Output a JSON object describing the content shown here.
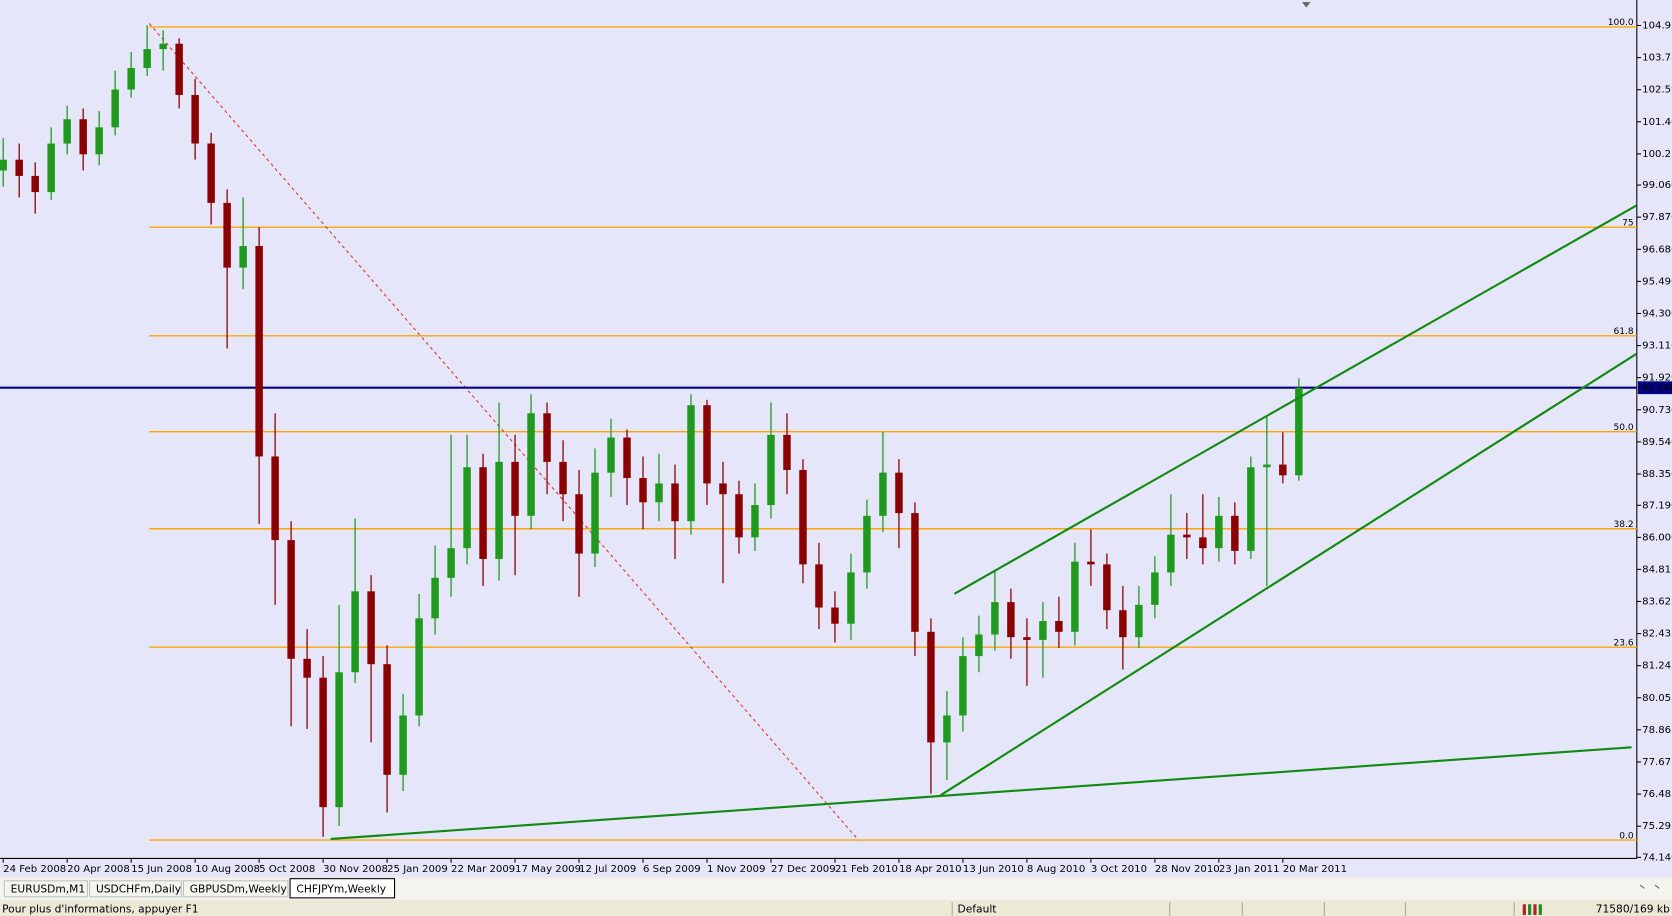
{
  "chart_data": {
    "type": "candlestick",
    "up_color": "#1f9a1f",
    "down_color": "#8b0000",
    "categories": [
      "24 Feb 2008",
      null,
      null,
      null,
      "20 Apr 2008",
      null,
      null,
      null,
      "15 Jun 2008",
      null,
      null,
      null,
      "10 Aug 2008",
      null,
      null,
      null,
      "5 Oct 2008",
      null,
      null,
      null,
      "30 Nov 2008",
      null,
      null,
      null,
      "25 Jan 2009",
      null,
      null,
      null,
      "22 Mar 2009",
      null,
      null,
      null,
      "17 May 2009",
      null,
      null,
      null,
      "12 Jul 2009",
      null,
      null,
      null,
      "6 Sep 2009",
      null,
      null,
      null,
      "1 Nov 2009",
      null,
      null,
      null,
      "27 Dec 2009",
      null,
      null,
      null,
      "21 Feb 2010",
      null,
      null,
      null,
      "18 Apr 2010",
      null,
      null,
      null,
      "13 Jun 2010",
      null,
      null,
      null,
      "8 Aug 2010",
      null,
      null,
      null,
      "3 Oct 2010",
      null,
      null,
      null,
      "28 Nov 2010",
      null,
      null,
      null,
      "23 Jan 2011",
      null,
      null,
      null,
      "20 Mar 2011",
      null
    ],
    "open": [
      99.6,
      100.0,
      99.4,
      98.8,
      100.6,
      101.5,
      100.2,
      101.2,
      102.6,
      103.4,
      104.1,
      104.3,
      102.4,
      100.6,
      98.4,
      96.0,
      96.8,
      89.0,
      85.9,
      81.5,
      80.8,
      76.0,
      81.0,
      84.0,
      81.3,
      77.2,
      79.4,
      83.0,
      84.5,
      85.6,
      88.6,
      85.2,
      88.8,
      86.8,
      90.6,
      88.8,
      87.6,
      85.4,
      88.4,
      89.7,
      88.2,
      87.3,
      88.0,
      86.6,
      90.9,
      88.0,
      87.6,
      86.0,
      87.2,
      89.8,
      88.5,
      85.0,
      83.4,
      82.8,
      84.7,
      86.8,
      88.4,
      86.9,
      82.5,
      78.4,
      79.4,
      81.6,
      82.4,
      83.6,
      82.3,
      82.2,
      82.9,
      82.5,
      85.1,
      85.0,
      83.3,
      82.3,
      83.5,
      84.7,
      86.1,
      86.0,
      85.6,
      86.8,
      85.5,
      88.6,
      88.7,
      88.3
    ],
    "high": [
      100.8,
      100.6,
      99.9,
      101.2,
      102.0,
      101.9,
      101.8,
      103.3,
      104.0,
      104.98,
      104.8,
      104.5,
      103.0,
      101.0,
      98.9,
      98.6,
      97.5,
      90.6,
      86.6,
      82.6,
      81.6,
      83.5,
      86.7,
      84.6,
      82.0,
      80.2,
      83.9,
      85.7,
      89.8,
      89.8,
      89.1,
      91.0,
      89.8,
      91.3,
      91.0,
      89.6,
      88.5,
      89.3,
      90.4,
      90.0,
      89.0,
      89.1,
      88.7,
      91.3,
      91.1,
      88.8,
      88.1,
      88.0,
      91.0,
      90.6,
      88.9,
      85.8,
      84.0,
      85.4,
      87.4,
      89.9,
      88.9,
      87.3,
      83.0,
      80.3,
      82.3,
      83.1,
      84.8,
      84.1,
      83.0,
      83.6,
      83.8,
      85.8,
      86.3,
      85.4,
      84.2,
      84.2,
      85.3,
      87.6,
      86.9,
      87.6,
      87.5,
      87.3,
      89.0,
      90.5,
      89.9,
      91.9
    ],
    "low": [
      99.0,
      98.6,
      98.0,
      98.5,
      100.2,
      99.6,
      99.8,
      100.9,
      102.3,
      103.1,
      103.3,
      101.9,
      100.0,
      97.6,
      93.0,
      95.2,
      86.5,
      83.5,
      79.0,
      78.9,
      74.9,
      75.3,
      80.6,
      78.4,
      75.8,
      76.6,
      79.0,
      82.4,
      83.8,
      85.0,
      84.2,
      84.4,
      84.6,
      86.3,
      87.6,
      86.6,
      83.8,
      84.9,
      87.5,
      87.2,
      86.3,
      86.6,
      85.2,
      86.1,
      87.2,
      84.3,
      85.4,
      85.5,
      86.7,
      87.6,
      84.3,
      82.6,
      82.1,
      82.2,
      84.1,
      86.2,
      85.6,
      81.6,
      76.5,
      77.0,
      78.8,
      81.0,
      81.8,
      81.5,
      80.5,
      80.8,
      81.9,
      82.0,
      84.2,
      82.6,
      81.1,
      81.9,
      83.0,
      84.2,
      85.2,
      85.0,
      85.1,
      85.0,
      85.2,
      84.2,
      88.0,
      88.1
    ],
    "close": [
      100.0,
      99.4,
      98.8,
      100.6,
      101.5,
      100.2,
      101.2,
      102.6,
      103.4,
      104.1,
      104.3,
      102.4,
      100.6,
      98.4,
      96.0,
      96.8,
      89.0,
      85.9,
      81.5,
      80.8,
      76.0,
      81.0,
      84.0,
      81.3,
      77.2,
      79.4,
      83.0,
      84.5,
      85.6,
      88.6,
      85.2,
      88.8,
      86.8,
      90.6,
      88.8,
      87.6,
      85.4,
      88.4,
      89.7,
      88.2,
      87.3,
      88.0,
      86.6,
      90.9,
      88.0,
      87.6,
      86.0,
      87.2,
      89.8,
      88.5,
      85.0,
      83.4,
      82.8,
      84.7,
      86.8,
      88.4,
      86.9,
      82.5,
      78.4,
      79.4,
      81.6,
      82.4,
      83.6,
      82.3,
      82.2,
      82.9,
      82.5,
      85.1,
      85.0,
      83.3,
      82.3,
      83.5,
      84.7,
      86.1,
      86.0,
      85.6,
      86.8,
      85.5,
      88.6,
      88.7,
      88.3,
      91.55
    ],
    "xlim": [
      -0.2,
      102.13
    ],
    "ylim": [
      74.1,
      105.92
    ],
    "yticks": [
      104.975,
      103.785,
      102.595,
      101.405,
      100.215,
      {
        "value": 99.06,
        "label": "99.060"
      },
      {
        "value": 97.87,
        "label": "97.870"
      },
      {
        "value": 96.68,
        "label": "96.680"
      },
      {
        "value": 95.49,
        "label": "95.490"
      },
      {
        "value": 94.3,
        "label": "94.300"
      },
      {
        "value": 93.11,
        "label": "93.110"
      },
      {
        "value": 91.92,
        "label": "91.920"
      },
      {
        "value": 90.73,
        "label": "90.730"
      },
      {
        "value": 89.54,
        "label": "89.540"
      },
      {
        "value": 88.35,
        "label": "88.350"
      },
      {
        "value": 87.19,
        "label": "87.190"
      },
      {
        "value": 86,
        "label": "86.000"
      },
      84.815,
      83.625,
      82.435,
      81.245,
      80.055,
      78.865,
      77.675,
      76.485,
      75.295,
      {
        "value": 74.14,
        "label": "74.140"
      }
    ],
    "last_price": 91.548,
    "last_price_color": "#000080",
    "fibo_color": "#ffa500",
    "fibo_levels": [
      {
        "label": "100.0",
        "price": 104.92
      },
      {
        "label": "75",
        "price": 97.5
      },
      {
        "label": "61.8",
        "price": 93.47
      },
      {
        "label": "50.0",
        "price": 89.92
      },
      {
        "label": "38.2",
        "price": 86.32
      },
      {
        "label": "23.6",
        "price": 81.93
      },
      {
        "label": "0.0",
        "price": 74.78
      }
    ],
    "fibo_line": {
      "color": "#e03030",
      "x": [
        9.13,
        53.47
      ],
      "y": [
        105.05,
        74.78
      ]
    },
    "trendlines": [
      {
        "color": "#108a10",
        "x": [
          20.47,
          101.8
        ],
        "y": [
          74.82,
          78.22
        ]
      },
      {
        "color": "#108a10",
        "x": [
          58.6,
          102.1
        ],
        "y": [
          76.44,
          92.8
        ]
      },
      {
        "color": "#108a10",
        "x": [
          59.47,
          102.1
        ],
        "y": [
          83.91,
          98.3
        ]
      }
    ]
  },
  "tabs": [
    "EURUSDm,M1",
    "USDCHFm,Daily",
    "GBPUSDm,Weekly",
    "CHFJPYm,Weekly"
  ],
  "status_bar": {
    "help": "Pour plus d'informations, appuyer F1",
    "profile": "Default",
    "traffic": "71580/169 kb"
  }
}
